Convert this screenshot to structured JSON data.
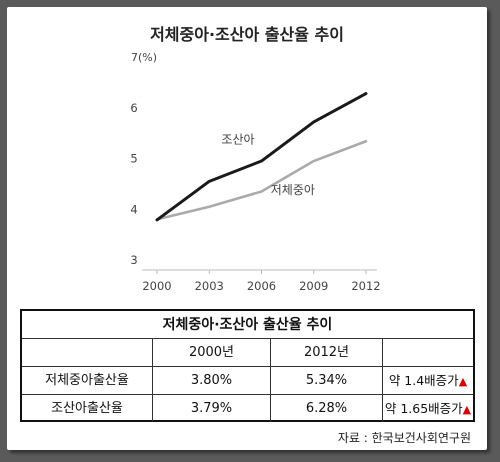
{
  "chart_data": {
    "type": "line",
    "title": "저체중아·조산아 출산율 추이",
    "ylabel": "7(%)",
    "x": [
      "2000",
      "2003",
      "2006",
      "2009",
      "2012"
    ],
    "ylim": [
      3,
      7
    ],
    "y_ticks": [
      "3",
      "4",
      "5",
      "6"
    ],
    "series": [
      {
        "name": "조산아",
        "values": [
          3.79,
          4.55,
          4.95,
          5.72,
          6.28
        ],
        "color": "#1a1a1a"
      },
      {
        "name": "저체중아",
        "values": [
          3.8,
          4.05,
          4.35,
          4.95,
          5.34
        ],
        "color": "#aaaaaa"
      }
    ]
  },
  "table": {
    "title": "저체중아·조산아 출산율 추이",
    "headers": [
      "",
      "2000년",
      "2012년",
      ""
    ],
    "rows": [
      {
        "label": "저체중아출산율",
        "v2000": "3.80%",
        "v2012": "5.34%",
        "change": "약 1.4배증가",
        "marker": "▲"
      },
      {
        "label": "조산아출산율",
        "v2000": "3.79%",
        "v2012": "6.28%",
        "change": "약 1.65배증가",
        "marker": "▲"
      }
    ]
  },
  "source": "자료 : 한국보건사회연구원"
}
